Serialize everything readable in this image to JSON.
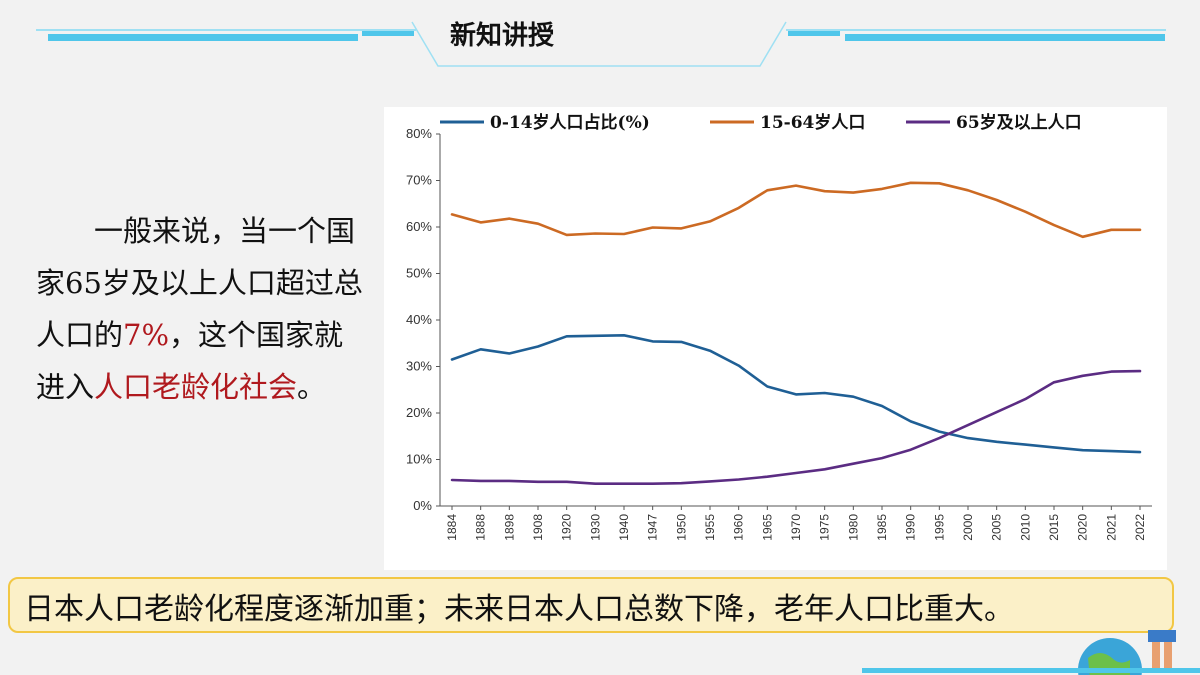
{
  "slide": {
    "title": "新知讲授",
    "side_text_parts": [
      {
        "text": "一般来说，当一个国家65岁及以上人口超过总人口的",
        "highlight": false
      },
      {
        "text": "7%",
        "highlight": true
      },
      {
        "text": "，这个国家就进入",
        "highlight": false
      },
      {
        "text": "人口老龄化社会",
        "highlight": true
      },
      {
        "text": "。",
        "highlight": false
      }
    ],
    "caption": "日本人口老龄化程度逐渐加重；未来日本人口总数下降，老年人口比重大。",
    "colors": {
      "accent": "#4fc6ea",
      "highlight": "#b0191e",
      "caption_bg": "#fbf0c8",
      "caption_border": "#f2c744"
    }
  },
  "chart_data": {
    "type": "line",
    "title": "",
    "xlabel": "",
    "ylabel": "",
    "ylim": [
      0,
      80
    ],
    "y_ticks": [
      "0%",
      "10%",
      "20%",
      "30%",
      "40%",
      "50%",
      "60%",
      "70%",
      "80%"
    ],
    "categories": [
      "1884",
      "1888",
      "1898",
      "1908",
      "1920",
      "1930",
      "1940",
      "1947",
      "1950",
      "1955",
      "1960",
      "1965",
      "1970",
      "1975",
      "1980",
      "1985",
      "1990",
      "1995",
      "2000",
      "2005",
      "2010",
      "2015",
      "2020",
      "2021",
      "2022"
    ],
    "legend_position": "top",
    "grid": false,
    "series": [
      {
        "name": "0-14岁人口占比(%)",
        "color": "#1f5f95",
        "values": [
          31.5,
          33.7,
          32.8,
          34.3,
          36.5,
          36.6,
          36.7,
          35.4,
          35.3,
          33.4,
          30.2,
          25.7,
          24.0,
          24.3,
          23.5,
          21.5,
          18.2,
          16.0,
          14.6,
          13.8,
          13.2,
          12.6,
          12.0,
          11.8,
          11.6
        ]
      },
      {
        "name": "15-64岁人口",
        "color": "#cc6a23",
        "values": [
          62.7,
          61.0,
          61.8,
          60.7,
          58.3,
          58.6,
          58.5,
          59.9,
          59.7,
          61.2,
          64.1,
          67.9,
          68.9,
          67.7,
          67.4,
          68.2,
          69.5,
          69.4,
          67.9,
          65.8,
          63.3,
          60.4,
          57.9,
          59.4,
          59.4
        ]
      },
      {
        "name": "65岁及以上人口",
        "color": "#5b2c83",
        "values": [
          5.6,
          5.4,
          5.4,
          5.2,
          5.2,
          4.8,
          4.8,
          4.8,
          4.9,
          5.3,
          5.7,
          6.3,
          7.1,
          7.9,
          9.1,
          10.3,
          12.1,
          14.6,
          17.4,
          20.2,
          23.0,
          26.6,
          28.0,
          28.9,
          29.0
        ]
      }
    ]
  }
}
